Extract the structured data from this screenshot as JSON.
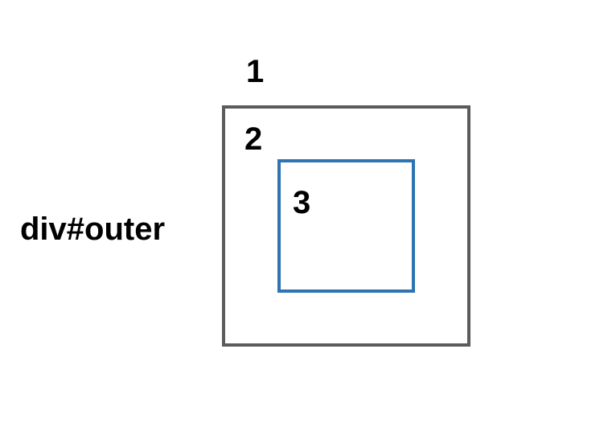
{
  "diagram": {
    "outer_element_label": "div#outer",
    "layer_labels": {
      "one": "1",
      "two": "2",
      "three": "3"
    },
    "colors": {
      "outer_border": "#5b5b5b",
      "inner_border": "#2f73b0",
      "text": "#000000",
      "background": "#ffffff"
    }
  }
}
